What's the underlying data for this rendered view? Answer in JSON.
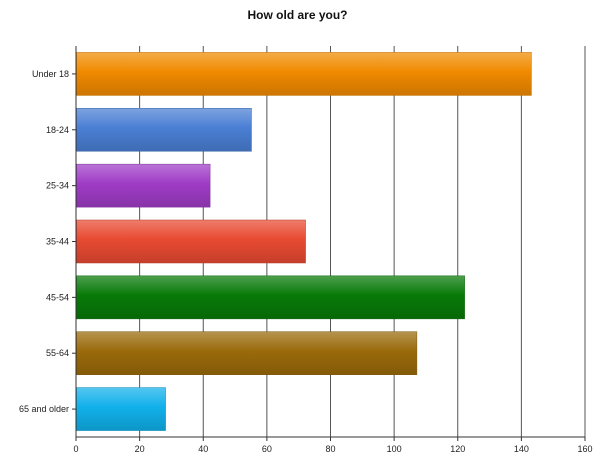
{
  "chart_data": {
    "type": "bar",
    "orientation": "horizontal",
    "title": "How old are you?",
    "xlabel": "",
    "ylabel": "",
    "categories": [
      "Under 18",
      "18-24",
      "25-34",
      "35-44",
      "45-54",
      "55-64",
      "65 and older"
    ],
    "values": [
      143,
      55,
      42,
      72,
      122,
      107,
      28
    ],
    "xlim": [
      0,
      160
    ],
    "xticks": [
      0,
      20,
      40,
      60,
      80,
      100,
      120,
      140,
      160
    ],
    "grid": "vertical",
    "legend": "none",
    "bar_colors": [
      "#f08a00",
      "#4a7fd4",
      "#9f3cc6",
      "#e84a32",
      "#087a08",
      "#9a6a0a",
      "#11b0ea"
    ]
  }
}
